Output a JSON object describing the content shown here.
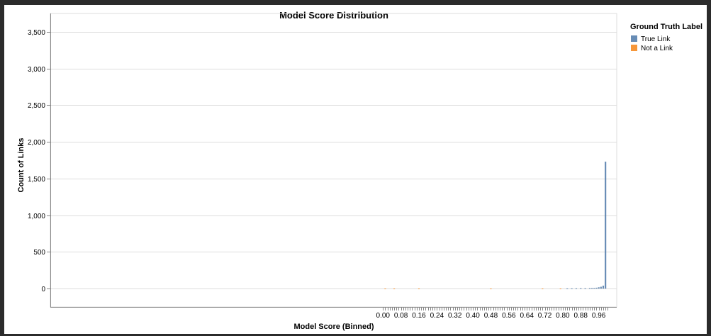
{
  "chart_data": {
    "type": "bar",
    "title": "Model Score Distribution",
    "xlabel": "Model Score (Binned)",
    "ylabel": "Count of Links",
    "xlim": [
      -1.48,
      1.04
    ],
    "ylim": [
      -250,
      3750
    ],
    "y_ticks": [
      0,
      500,
      1000,
      1500,
      2000,
      2500,
      3000,
      3500
    ],
    "y_tick_labels": [
      "0",
      "500",
      "1,000",
      "1,500",
      "2,000",
      "2,500",
      "3,000",
      "3,500"
    ],
    "x_ticks": [
      0.0,
      0.08,
      0.16,
      0.24,
      0.32,
      0.4,
      0.48,
      0.56,
      0.64,
      0.72,
      0.8,
      0.88,
      0.96
    ],
    "x_tick_labels": [
      "0.00",
      "0.08",
      "0.16",
      "0.24",
      "0.32",
      "0.40",
      "0.48",
      "0.56",
      "0.64",
      "0.72",
      "0.80",
      "0.88",
      "0.96"
    ],
    "bin_width": 0.01,
    "grid": true,
    "legend_position": "right",
    "legend_title": "Ground Truth Label",
    "series": [
      {
        "name": "True Link",
        "color": "#4c78a8",
        "x": [
          0.82,
          0.84,
          0.86,
          0.88,
          0.9,
          0.92,
          0.93,
          0.94,
          0.95,
          0.96,
          0.97,
          0.98,
          0.99
        ],
        "values": [
          2,
          3,
          4,
          6,
          5,
          7,
          8,
          9,
          12,
          18,
          25,
          40,
          1730
        ]
      },
      {
        "name": "Not a Link",
        "color": "#f58518",
        "x": [
          0.01,
          0.05,
          0.16,
          0.48,
          0.71,
          0.79
        ],
        "values": [
          1,
          1,
          1,
          1,
          1,
          1
        ]
      }
    ]
  }
}
